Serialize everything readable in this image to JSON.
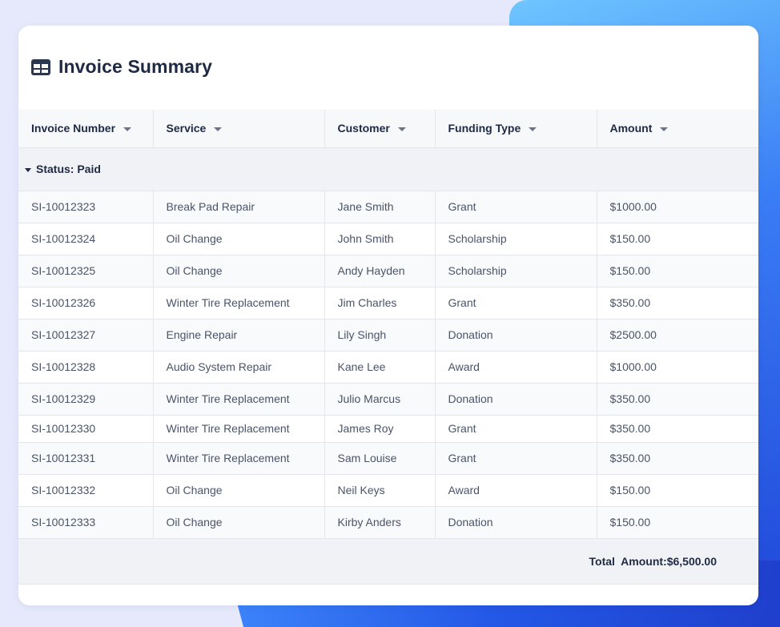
{
  "title": "Invoice Summary",
  "icons": {
    "title_icon": "table-icon",
    "sort": "caret-down-icon",
    "group_toggle": "caret-down-icon"
  },
  "colors": {
    "accent": "#2f6cf0",
    "text": "#1e2a44",
    "cell_text": "#4a5468",
    "header_bg": "#f7f8fa",
    "group_bg": "#f1f2f5"
  },
  "columns": [
    "Invoice Number",
    "Service",
    "Customer",
    "Funding Type",
    "Amount"
  ],
  "group": {
    "label": "Status: Paid"
  },
  "rows": [
    [
      "SI-10012323",
      "Break Pad Repair",
      "Jane Smith",
      "Grant",
      "$1000.00"
    ],
    [
      "SI-10012324",
      "Oil Change",
      "John Smith",
      "Scholarship",
      "$150.00"
    ],
    [
      "SI-10012325",
      "Oil Change",
      "Andy Hayden",
      "Scholarship",
      "$150.00"
    ],
    [
      "SI-10012326",
      "Winter Tire Replacement",
      "Jim Charles",
      "Grant",
      "$350.00"
    ],
    [
      "SI-10012327",
      "Engine Repair",
      "Lily Singh",
      "Donation",
      "$2500.00"
    ],
    [
      "SI-10012328",
      "Audio System Repair",
      "Kane Lee",
      "Award",
      "$1000.00"
    ],
    [
      "SI-10012329",
      "Winter Tire Replacement",
      "Julio Marcus",
      "Donation",
      "$350.00"
    ],
    [
      "SI-10012330",
      "Winter Tire Replacement",
      "James Roy",
      "Grant",
      "$350.00"
    ],
    [
      "SI-10012331",
      "Winter Tire Replacement",
      "Sam Louise",
      "Grant",
      "$350.00"
    ],
    [
      "SI-10012332",
      "Oil Change",
      "Neil Keys",
      "Award",
      "$150.00"
    ],
    [
      "SI-10012333",
      "Oil Change",
      "Kirby Anders",
      "Donation",
      "$150.00"
    ]
  ],
  "footer": {
    "total": "Total  Amount:$6,500.00"
  }
}
